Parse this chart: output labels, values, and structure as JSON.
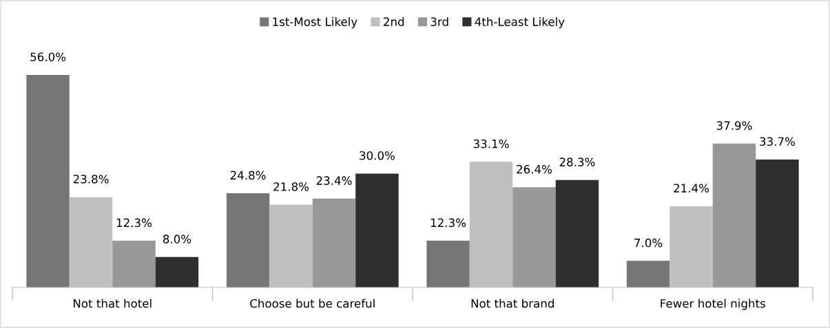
{
  "chart_data": {
    "type": "bar",
    "categories": [
      "Not that hotel",
      "Choose but be careful",
      "Not that brand",
      "Fewer hotel nights"
    ],
    "series": [
      {
        "name": "1st-Most Likely",
        "color": "#767676",
        "values": [
          56.0,
          24.8,
          12.3,
          7.0
        ],
        "value_labels": [
          "56.0%",
          "24.8%",
          "12.3%",
          "7.0%"
        ]
      },
      {
        "name": "2nd",
        "color": "#c0c0c0",
        "values": [
          23.8,
          21.8,
          33.1,
          21.4
        ],
        "value_labels": [
          "23.8%",
          "21.8%",
          "33.1%",
          "21.4%"
        ]
      },
      {
        "name": "3rd",
        "color": "#989898",
        "values": [
          12.3,
          23.4,
          26.4,
          37.9
        ],
        "value_labels": [
          "12.3%",
          "23.4%",
          "26.4%",
          "37.9%"
        ]
      },
      {
        "name": "4th-Least Likely",
        "color": "#2f2f2f",
        "values": [
          8.0,
          30.0,
          28.3,
          33.7
        ],
        "value_labels": [
          "8.0%",
          "30.0%",
          "28.3%",
          "33.7%"
        ]
      }
    ],
    "legend": "top"
  }
}
